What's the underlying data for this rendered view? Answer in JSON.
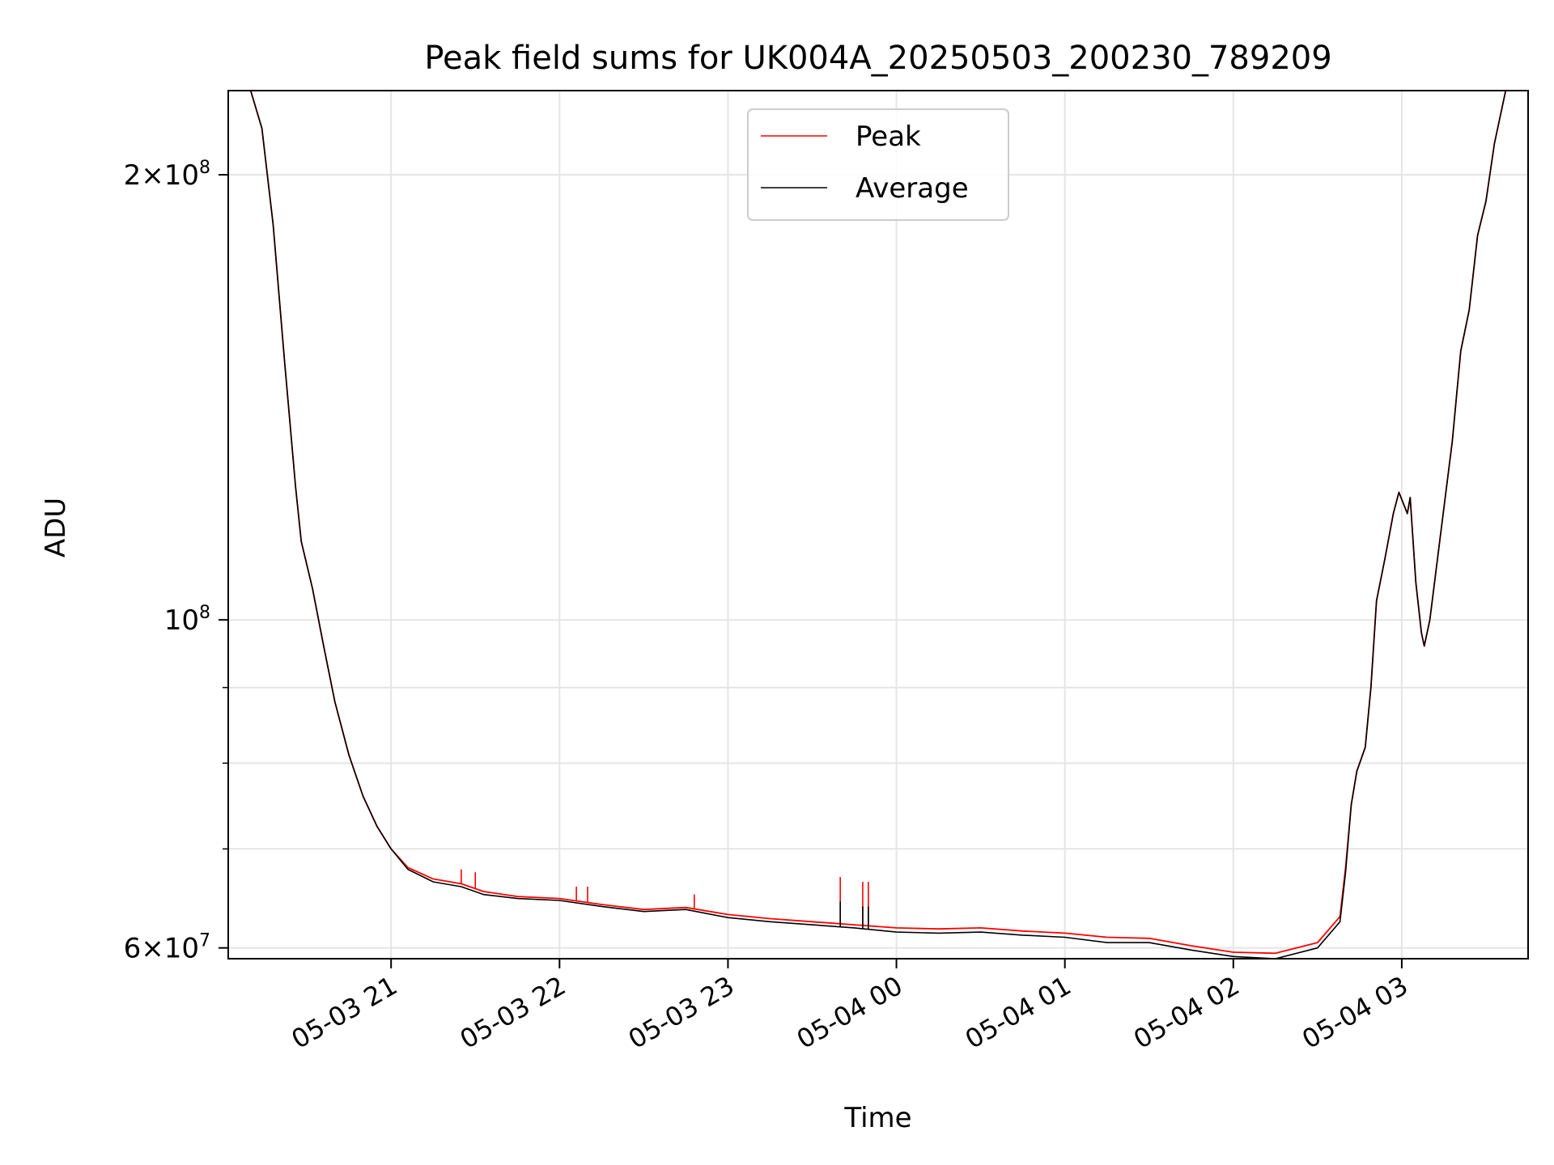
{
  "chart_data": {
    "type": "line",
    "title": "Peak field sums for UK004A_20250503_200230_789209",
    "xlabel": "Time",
    "ylabel": "ADU",
    "x_axis_type": "time",
    "x_range": [
      "2025-05-03 20:02",
      "2025-05-04 03:45"
    ],
    "y_scale": "log",
    "ylim": [
      59000000,
      228000000
    ],
    "grid": true,
    "legend_position": "upper center",
    "x_ticks": [
      {
        "value": "2025-05-03 21:00",
        "label": "05-03 21"
      },
      {
        "value": "2025-05-03 22:00",
        "label": "05-03 22"
      },
      {
        "value": "2025-05-03 23:00",
        "label": "05-03 23"
      },
      {
        "value": "2025-05-04 00:00",
        "label": "05-04 00"
      },
      {
        "value": "2025-05-04 01:00",
        "label": "05-04 01"
      },
      {
        "value": "2025-05-04 02:00",
        "label": "05-04 02"
      },
      {
        "value": "2025-05-04 03:00",
        "label": "05-04 03"
      }
    ],
    "y_ticks": [
      {
        "value": 60000000,
        "base": "6",
        "exp": "7"
      },
      {
        "value": 100000000,
        "base": "",
        "exp": "8"
      },
      {
        "value": 200000000,
        "base": "2",
        "exp": "8"
      }
    ],
    "y_minor_ticks": [
      70000000,
      80000000,
      90000000
    ],
    "series": [
      {
        "name": "Peak",
        "color": "#ff0000",
        "points": [
          [
            "2025-05-03 20:02",
            228000000
          ],
          [
            "2025-05-03 20:10",
            228000000
          ],
          [
            "2025-05-03 20:14",
            215000000
          ],
          [
            "2025-05-03 20:18",
            185000000
          ],
          [
            "2025-05-03 20:22",
            150000000
          ],
          [
            "2025-05-03 20:26",
            123000000
          ],
          [
            "2025-05-03 20:28",
            113000000
          ],
          [
            "2025-05-03 20:32",
            105000000
          ],
          [
            "2025-05-03 20:36",
            96000000
          ],
          [
            "2025-05-03 20:40",
            88000000
          ],
          [
            "2025-05-03 20:45",
            81000000
          ],
          [
            "2025-05-03 20:50",
            76000000
          ],
          [
            "2025-05-03 20:55",
            72500000
          ],
          [
            "2025-05-03 21:00",
            70000000
          ],
          [
            "2025-05-03 21:06",
            68000000
          ],
          [
            "2025-05-03 21:15",
            66800000
          ],
          [
            "2025-05-03 21:25",
            66300000
          ],
          [
            "2025-05-03 21:33",
            65500000
          ],
          [
            "2025-05-03 21:45",
            65000000
          ],
          [
            "2025-05-03 22:00",
            64800000
          ],
          [
            "2025-05-03 22:15",
            64200000
          ],
          [
            "2025-05-03 22:30",
            63700000
          ],
          [
            "2025-05-03 22:45",
            63900000
          ],
          [
            "2025-05-03 23:00",
            63200000
          ],
          [
            "2025-05-03 23:15",
            62800000
          ],
          [
            "2025-05-03 23:30",
            62500000
          ],
          [
            "2025-05-03 23:45",
            62200000
          ],
          [
            "2025-05-04 00:00",
            61900000
          ],
          [
            "2025-05-04 00:15",
            61800000
          ],
          [
            "2025-05-04 00:30",
            61900000
          ],
          [
            "2025-05-04 00:45",
            61600000
          ],
          [
            "2025-05-04 01:00",
            61400000
          ],
          [
            "2025-05-04 01:15",
            61000000
          ],
          [
            "2025-05-04 01:30",
            60900000
          ],
          [
            "2025-05-04 01:45",
            60200000
          ],
          [
            "2025-05-04 02:00",
            59600000
          ],
          [
            "2025-05-04 02:15",
            59500000
          ],
          [
            "2025-05-04 02:30",
            60500000
          ],
          [
            "2025-05-04 02:38",
            63000000
          ],
          [
            "2025-05-04 02:40",
            68000000
          ],
          [
            "2025-05-04 02:42",
            75000000
          ],
          [
            "2025-05-04 02:44",
            79000000
          ],
          [
            "2025-05-04 02:47",
            82000000
          ],
          [
            "2025-05-04 02:49",
            90000000
          ],
          [
            "2025-05-04 02:51",
            103000000
          ],
          [
            "2025-05-04 02:54",
            110000000
          ],
          [
            "2025-05-04 02:57",
            118000000
          ],
          [
            "2025-05-04 02:59",
            122000000
          ],
          [
            "2025-05-04 03:02",
            118000000
          ],
          [
            "2025-05-04 03:03",
            121000000
          ],
          [
            "2025-05-04 03:05",
            106000000
          ],
          [
            "2025-05-04 03:07",
            98000000
          ],
          [
            "2025-05-04 03:08",
            96000000
          ],
          [
            "2025-05-04 03:10",
            100000000
          ],
          [
            "2025-05-04 03:14",
            115000000
          ],
          [
            "2025-05-04 03:18",
            132000000
          ],
          [
            "2025-05-04 03:21",
            152000000
          ],
          [
            "2025-05-04 03:24",
            162000000
          ],
          [
            "2025-05-04 03:27",
            182000000
          ],
          [
            "2025-05-04 03:30",
            192000000
          ],
          [
            "2025-05-04 03:33",
            210000000
          ],
          [
            "2025-05-04 03:37",
            228000000
          ],
          [
            "2025-05-04 03:45",
            228000000
          ]
        ]
      },
      {
        "name": "Average",
        "color": "#000000",
        "points": [
          [
            "2025-05-03 20:02",
            228000000
          ],
          [
            "2025-05-03 20:10",
            228000000
          ],
          [
            "2025-05-03 20:14",
            215000000
          ],
          [
            "2025-05-03 20:18",
            185000000
          ],
          [
            "2025-05-03 20:22",
            150000000
          ],
          [
            "2025-05-03 20:26",
            123000000
          ],
          [
            "2025-05-03 20:28",
            113000000
          ],
          [
            "2025-05-03 20:32",
            105000000
          ],
          [
            "2025-05-03 20:36",
            96000000
          ],
          [
            "2025-05-03 20:40",
            88000000
          ],
          [
            "2025-05-03 20:45",
            81000000
          ],
          [
            "2025-05-03 20:50",
            76000000
          ],
          [
            "2025-05-03 20:55",
            72500000
          ],
          [
            "2025-05-03 21:00",
            70000000
          ],
          [
            "2025-05-03 21:06",
            67800000
          ],
          [
            "2025-05-03 21:15",
            66500000
          ],
          [
            "2025-05-03 21:25",
            66000000
          ],
          [
            "2025-05-03 21:33",
            65200000
          ],
          [
            "2025-05-03 21:45",
            64800000
          ],
          [
            "2025-05-03 22:00",
            64600000
          ],
          [
            "2025-05-03 22:15",
            64000000
          ],
          [
            "2025-05-03 22:30",
            63500000
          ],
          [
            "2025-05-03 22:45",
            63700000
          ],
          [
            "2025-05-03 23:00",
            62900000
          ],
          [
            "2025-05-03 23:15",
            62500000
          ],
          [
            "2025-05-03 23:30",
            62200000
          ],
          [
            "2025-05-03 23:45",
            61900000
          ],
          [
            "2025-05-04 00:00",
            61500000
          ],
          [
            "2025-05-04 00:15",
            61400000
          ],
          [
            "2025-05-04 00:30",
            61500000
          ],
          [
            "2025-05-04 00:45",
            61200000
          ],
          [
            "2025-05-04 01:00",
            61000000
          ],
          [
            "2025-05-04 01:15",
            60500000
          ],
          [
            "2025-05-04 01:30",
            60500000
          ],
          [
            "2025-05-04 01:45",
            59800000
          ],
          [
            "2025-05-04 02:00",
            59200000
          ],
          [
            "2025-05-04 02:15",
            59000000
          ],
          [
            "2025-05-04 02:30",
            60000000
          ],
          [
            "2025-05-04 02:38",
            62500000
          ],
          [
            "2025-05-04 02:40",
            67500000
          ],
          [
            "2025-05-04 02:42",
            75000000
          ],
          [
            "2025-05-04 02:44",
            79000000
          ],
          [
            "2025-05-04 02:47",
            82000000
          ],
          [
            "2025-05-04 02:49",
            90000000
          ],
          [
            "2025-05-04 02:51",
            103000000
          ],
          [
            "2025-05-04 02:54",
            110000000
          ],
          [
            "2025-05-04 02:57",
            118000000
          ],
          [
            "2025-05-04 02:59",
            122000000
          ],
          [
            "2025-05-04 03:02",
            118000000
          ],
          [
            "2025-05-04 03:03",
            121000000
          ],
          [
            "2025-05-04 03:05",
            106000000
          ],
          [
            "2025-05-04 03:07",
            98000000
          ],
          [
            "2025-05-04 03:08",
            96000000
          ],
          [
            "2025-05-04 03:10",
            100000000
          ],
          [
            "2025-05-04 03:14",
            115000000
          ],
          [
            "2025-05-04 03:18",
            132000000
          ],
          [
            "2025-05-04 03:21",
            152000000
          ],
          [
            "2025-05-04 03:24",
            162000000
          ],
          [
            "2025-05-04 03:27",
            182000000
          ],
          [
            "2025-05-04 03:30",
            192000000
          ],
          [
            "2025-05-04 03:33",
            210000000
          ],
          [
            "2025-05-04 03:37",
            228000000
          ],
          [
            "2025-05-04 03:45",
            228000000
          ]
        ]
      }
    ],
    "peak_spikes": [
      {
        "time": "2025-05-03 21:25",
        "value": 67800000
      },
      {
        "time": "2025-05-03 21:30",
        "value": 67500000
      },
      {
        "time": "2025-05-03 22:06",
        "value": 66000000
      },
      {
        "time": "2025-05-03 22:10",
        "value": 66000000
      },
      {
        "time": "2025-05-03 22:48",
        "value": 65200000
      },
      {
        "time": "2025-05-03 23:40",
        "value": 67000000
      },
      {
        "time": "2025-05-03 23:48",
        "value": 66500000
      },
      {
        "time": "2025-05-03 23:50",
        "value": 66500000
      }
    ],
    "average_spikes": [
      {
        "time": "2025-05-03 23:40",
        "value": 64500000
      },
      {
        "time": "2025-05-03 23:48",
        "value": 64000000
      },
      {
        "time": "2025-05-03 23:50",
        "value": 64000000
      }
    ]
  }
}
